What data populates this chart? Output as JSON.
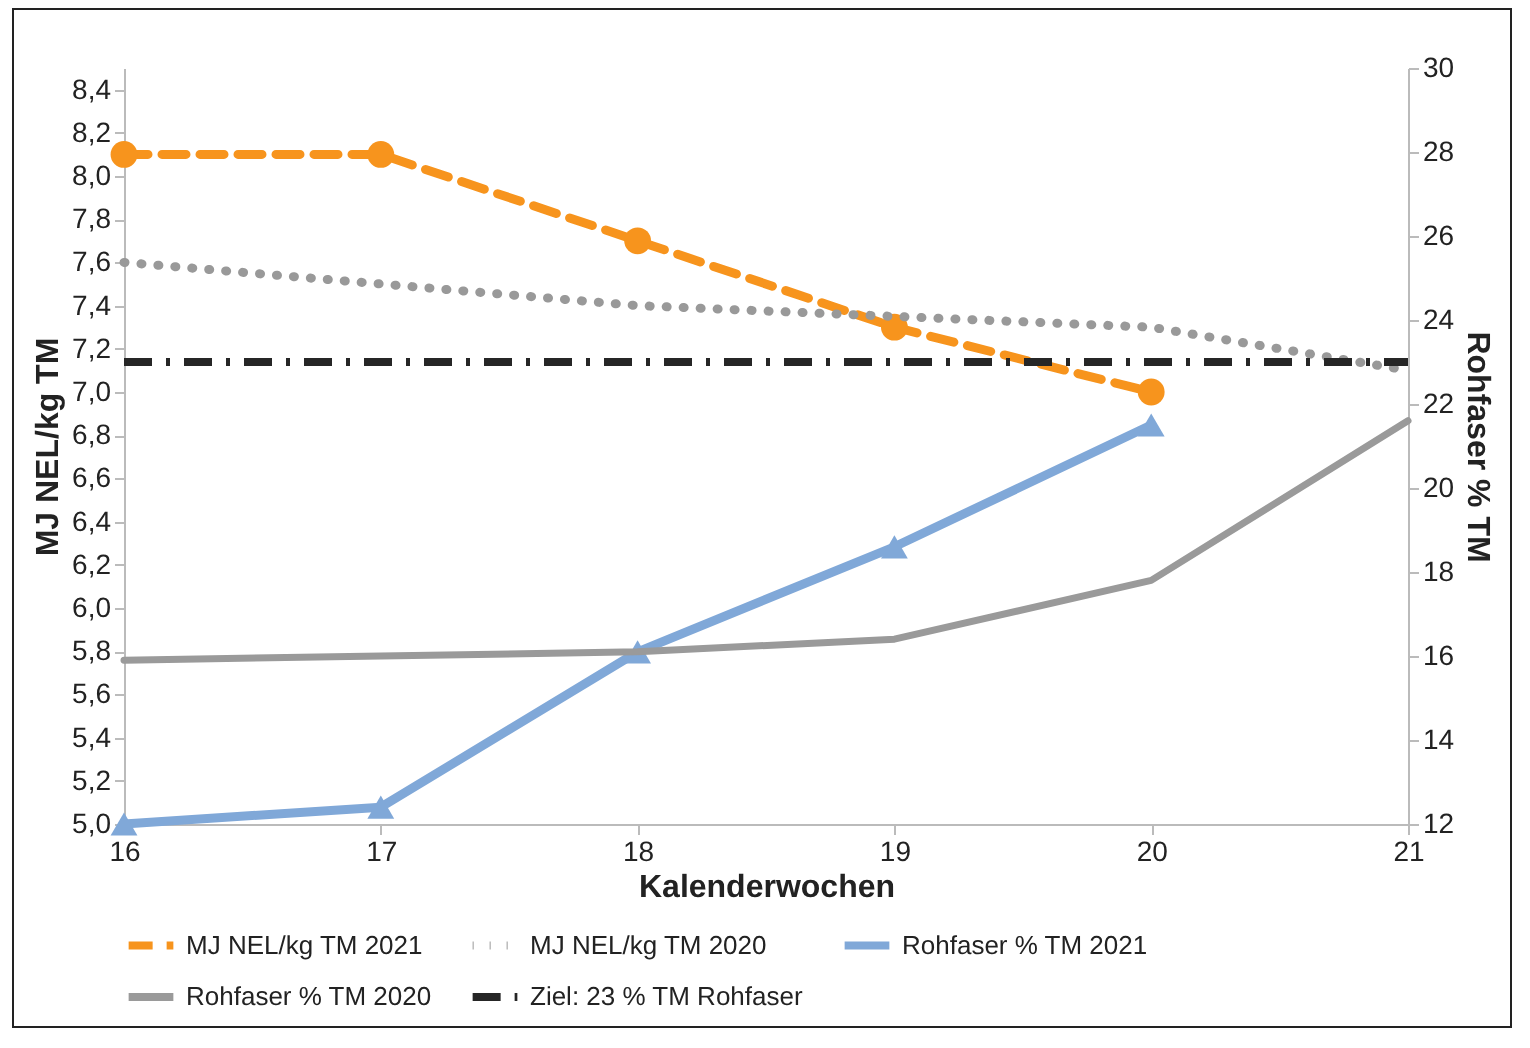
{
  "chart_data": {
    "type": "line",
    "xlabel": "Kalenderwochen",
    "ylabel": "MJ NEL/kg TM",
    "y2label": "Rohfaser % TM",
    "x": [
      16,
      17,
      18,
      19,
      20,
      21
    ],
    "series": [
      {
        "name": "MJ NEL/kg TM 2021",
        "color": "#f7941d",
        "values": [
          8.1,
          8.1,
          7.7,
          7.3,
          7.0,
          null
        ],
        "marker": "circle",
        "line_style": "dashed"
      },
      {
        "name": "MJ NEL/kg TM 2020",
        "color": "#999999",
        "values": [
          7.6,
          7.5,
          7.4,
          7.35,
          7.3,
          7.1
        ],
        "marker": "none",
        "line_style": "dotted"
      },
      {
        "name": "Rohfaser % TM 2021",
        "color": "#80a8d8",
        "values": [
          12,
          12.4,
          16.1,
          18.6,
          21.5,
          null
        ],
        "marker": "triangle",
        "line_style": "solid",
        "axis": "y2"
      },
      {
        "name": "Rohfaser % TM 2020",
        "color": "#9a9a9a",
        "values": [
          15.9,
          16.0,
          16.1,
          16.4,
          17.8,
          21.6
        ],
        "marker": "none",
        "line_style": "solid",
        "axis": "y2"
      }
    ],
    "ref_lines": [
      {
        "axis": "y2",
        "value": 23,
        "label": "Ziel: 23 % TM Rohfaser",
        "color": "#262626",
        "line_style": "dashed"
      }
    ],
    "xlim": [
      16,
      21
    ],
    "xticks": [
      16,
      17,
      18,
      19,
      20,
      21
    ],
    "ylim": [
      5.0,
      8.5
    ],
    "yticks": [
      {
        "value": 5.0,
        "label": "5,0"
      },
      {
        "value": 5.2,
        "label": "5,2"
      },
      {
        "value": 5.4,
        "label": "5,4"
      },
      {
        "value": 5.6,
        "label": "5,6"
      },
      {
        "value": 5.8,
        "label": "5,8"
      },
      {
        "value": 6.0,
        "label": "6,0"
      },
      {
        "value": 6.2,
        "label": "6,2"
      },
      {
        "value": 6.4,
        "label": "6,4"
      },
      {
        "value": 6.6,
        "label": "6,6"
      },
      {
        "value": 6.8,
        "label": "6,8"
      },
      {
        "value": 7.0,
        "label": "7,0"
      },
      {
        "value": 7.2,
        "label": "7,2"
      },
      {
        "value": 7.4,
        "label": "7,4"
      },
      {
        "value": 7.6,
        "label": "7,6"
      },
      {
        "value": 7.8,
        "label": "7,8"
      },
      {
        "value": 8.0,
        "label": "8,0"
      },
      {
        "value": 8.2,
        "label": "8,2"
      },
      {
        "value": 8.4,
        "label": "8,4"
      }
    ],
    "y2lim": [
      12,
      30
    ],
    "y2ticks": [
      12,
      14,
      16,
      18,
      20,
      22,
      24,
      26,
      28,
      30
    ],
    "grid": false,
    "legend": "bottom"
  }
}
